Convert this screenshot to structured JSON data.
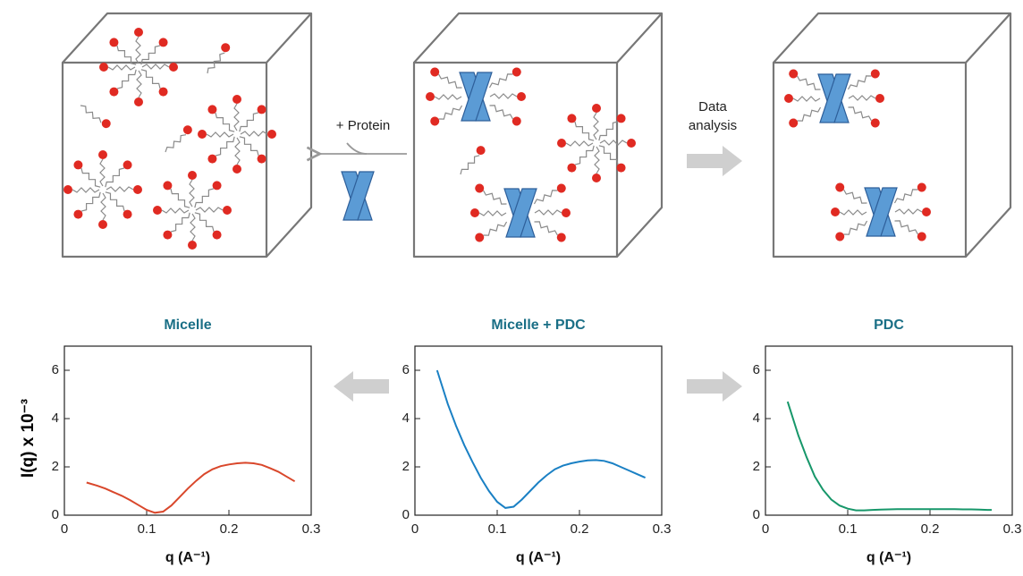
{
  "diagram": {
    "add_protein": "+ Protein",
    "data_analysis": [
      "Data",
      "analysis"
    ]
  },
  "chart_data": [
    {
      "type": "line",
      "title": "Micelle",
      "y_label": "I(q) x 10⁻³",
      "x_label": "q (A⁻¹)",
      "color": "#d9472b",
      "x": [
        0.027,
        0.04,
        0.05,
        0.06,
        0.07,
        0.08,
        0.09,
        0.1,
        0.11,
        0.12,
        0.13,
        0.14,
        0.15,
        0.16,
        0.17,
        0.18,
        0.19,
        0.2,
        0.21,
        0.22,
        0.23,
        0.24,
        0.25,
        0.26,
        0.27,
        0.28
      ],
      "values": [
        1.35,
        1.22,
        1.1,
        0.95,
        0.8,
        0.62,
        0.42,
        0.22,
        0.1,
        0.15,
        0.4,
        0.75,
        1.1,
        1.42,
        1.7,
        1.9,
        2.03,
        2.1,
        2.15,
        2.17,
        2.15,
        2.08,
        1.95,
        1.8,
        1.6,
        1.4
      ],
      "xlim": [
        0,
        0.3
      ],
      "ylim": [
        0,
        7
      ],
      "xticks": [
        0,
        0.1,
        0.2,
        0.3
      ],
      "yticks": [
        0,
        2,
        4,
        6
      ]
    },
    {
      "type": "line",
      "title": "Micelle + PDC",
      "x_label": "q (A⁻¹)",
      "color": "#1a80c4",
      "x": [
        0.027,
        0.04,
        0.05,
        0.06,
        0.07,
        0.08,
        0.09,
        0.1,
        0.11,
        0.12,
        0.13,
        0.14,
        0.15,
        0.16,
        0.17,
        0.18,
        0.19,
        0.2,
        0.21,
        0.22,
        0.23,
        0.24,
        0.25,
        0.26,
        0.27,
        0.28
      ],
      "values": [
        6.0,
        4.6,
        3.7,
        2.9,
        2.2,
        1.55,
        1.0,
        0.55,
        0.3,
        0.35,
        0.65,
        1.0,
        1.35,
        1.65,
        1.9,
        2.05,
        2.15,
        2.22,
        2.27,
        2.28,
        2.25,
        2.15,
        2.0,
        1.85,
        1.7,
        1.55
      ],
      "xlim": [
        0,
        0.3
      ],
      "ylim": [
        0,
        7
      ],
      "xticks": [
        0,
        0.1,
        0.2,
        0.3
      ],
      "yticks": [
        0,
        2,
        4,
        6
      ]
    },
    {
      "type": "line",
      "title": "PDC",
      "x_label": "q (A⁻¹)",
      "color": "#17976a",
      "x": [
        0.027,
        0.04,
        0.05,
        0.06,
        0.07,
        0.08,
        0.09,
        0.1,
        0.11,
        0.12,
        0.13,
        0.14,
        0.15,
        0.16,
        0.17,
        0.18,
        0.19,
        0.2,
        0.21,
        0.22,
        0.23,
        0.24,
        0.25,
        0.26,
        0.27,
        0.275
      ],
      "values": [
        4.7,
        3.3,
        2.4,
        1.6,
        1.05,
        0.65,
        0.4,
        0.27,
        0.2,
        0.2,
        0.22,
        0.23,
        0.24,
        0.25,
        0.25,
        0.25,
        0.25,
        0.25,
        0.25,
        0.25,
        0.25,
        0.24,
        0.24,
        0.23,
        0.22,
        0.22
      ],
      "xlim": [
        0,
        0.3
      ],
      "ylim": [
        0,
        7
      ],
      "xticks": [
        0,
        0.1,
        0.2,
        0.3
      ],
      "yticks": [
        0,
        2,
        4,
        6
      ]
    }
  ]
}
